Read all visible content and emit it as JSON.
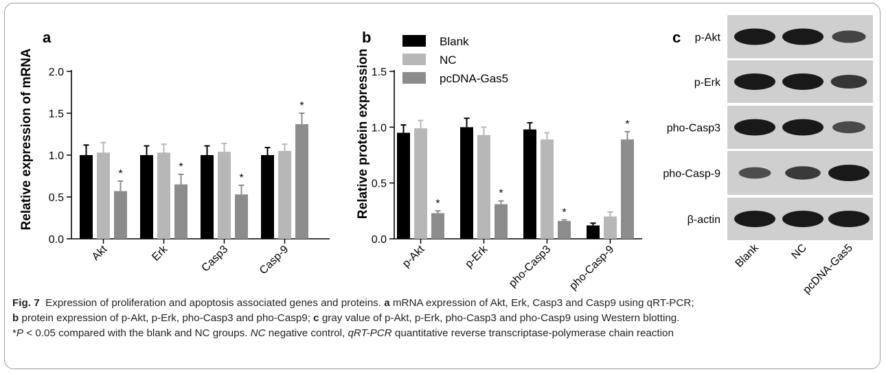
{
  "chart_data": [
    {
      "type": "bar",
      "panel_letter": "a",
      "ylabel": "Relative expression of mRNA",
      "ylim": [
        0,
        2.0
      ],
      "yticks": [
        "0.0",
        "0.5",
        "1.0",
        "1.5",
        "2.0"
      ],
      "categories": [
        "Akt",
        "Erk",
        "Casp3",
        "Casp-9"
      ],
      "series": [
        {
          "values": [
            1.0,
            1.0,
            1.0,
            1.0
          ],
          "errors": [
            0.12,
            0.11,
            0.11,
            0.09
          ],
          "color": "#000000"
        },
        {
          "values": [
            1.03,
            1.03,
            1.04,
            1.05
          ],
          "errors": [
            0.12,
            0.1,
            0.1,
            0.08
          ],
          "color": "#b7b7b7"
        },
        {
          "values": [
            0.57,
            0.65,
            0.53,
            1.37
          ],
          "errors": [
            0.12,
            0.12,
            0.11,
            0.13
          ],
          "color": "#8c8c8c"
        }
      ],
      "annotations": [
        "*",
        "*",
        "*",
        "*"
      ]
    },
    {
      "type": "bar",
      "panel_letter": "b",
      "ylabel": "Relative protein expression",
      "ylim": [
        0,
        1.5
      ],
      "yticks": [
        "0.0",
        "0.5",
        "1.0",
        "1.5"
      ],
      "categories": [
        "p-Akt",
        "p-Erk",
        "pho-Casp3",
        "pho-Casp-9"
      ],
      "legend": {
        "position": "top",
        "entries": [
          "Blank",
          "NC",
          "pcDNA-Gas5"
        ]
      },
      "series": [
        {
          "name": "Blank",
          "values": [
            0.95,
            1.0,
            0.98,
            0.12
          ],
          "errors": [
            0.07,
            0.08,
            0.06,
            0.02
          ],
          "color": "#000000"
        },
        {
          "name": "NC",
          "values": [
            0.99,
            0.93,
            0.89,
            0.2
          ],
          "errors": [
            0.07,
            0.07,
            0.06,
            0.04
          ],
          "color": "#b7b7b7"
        },
        {
          "name": "pcDNA-Gas5",
          "values": [
            0.23,
            0.31,
            0.16,
            0.89
          ],
          "errors": [
            0.02,
            0.03,
            0.01,
            0.07
          ],
          "color": "#8c8c8c"
        }
      ],
      "annotations": [
        "*",
        "*",
        "*",
        "*"
      ]
    },
    {
      "type": "blot",
      "panel_letter": "c",
      "rows": [
        "p-Akt",
        "p-Erk",
        "pho-Casp3",
        "pho-Casp-9",
        "β-actin"
      ],
      "lanes": [
        "Blank",
        "NC",
        "pcDNA-Gas5"
      ],
      "band_intensity": [
        [
          1.0,
          1.0,
          0.55
        ],
        [
          1.0,
          1.0,
          0.7
        ],
        [
          1.0,
          1.0,
          0.5
        ],
        [
          0.45,
          0.65,
          1.0
        ],
        [
          1.0,
          1.0,
          1.0
        ]
      ]
    }
  ],
  "caption": {
    "fig": "Fig. 7",
    "title": "Expression of proliferation and apoptosis associated genes and proteins.",
    "a_label": "a",
    "a_text": "mRNA expression of Akt, Erk, Casp3 and Casp9 using qRT-PCR;",
    "b_label": "b",
    "b_text": "protein expression of p-Akt, p-Erk, pho-Casp3 and pho-Casp9;",
    "c_label": "c",
    "c_text": "gray value of p-Akt, p-Erk, pho-Casp3 and pho-Casp9 using Western blotting.",
    "p_star": "*",
    "p_var": "P",
    "p_text": "< 0.05 compared with the blank and NC groups.",
    "nc_abbr": "NC",
    "nc_text": "negative control,",
    "qrt_abbr": "qRT-PCR",
    "qrt_text": "quantitative reverse transcriptase-polymerase chain reaction"
  }
}
